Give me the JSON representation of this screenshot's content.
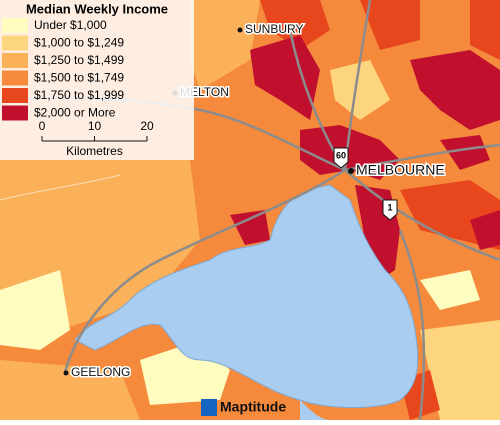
{
  "legend": {
    "title": "Median Weekly Income",
    "items": [
      {
        "label": "Under $1,000",
        "color": "#fefcbf"
      },
      {
        "label": "$1,000 to $1,249",
        "color": "#fdd57e"
      },
      {
        "label": "$1,250 to $1,499",
        "color": "#fbb05a"
      },
      {
        "label": "$1,500 to $1,749",
        "color": "#f68a3c"
      },
      {
        "label": "$1,750 to $1,999",
        "color": "#e8471e"
      },
      {
        "label": "$2,000 or More",
        "color": "#c0102e"
      }
    ]
  },
  "scale": {
    "ticks": [
      0,
      10,
      20
    ],
    "unit": "Kilometres"
  },
  "places": [
    "SUNBURY",
    "MELTON",
    "MELBOURNE",
    "GEELONG"
  ],
  "shields": [
    "60",
    "1"
  ],
  "brand": "Maptitude"
}
